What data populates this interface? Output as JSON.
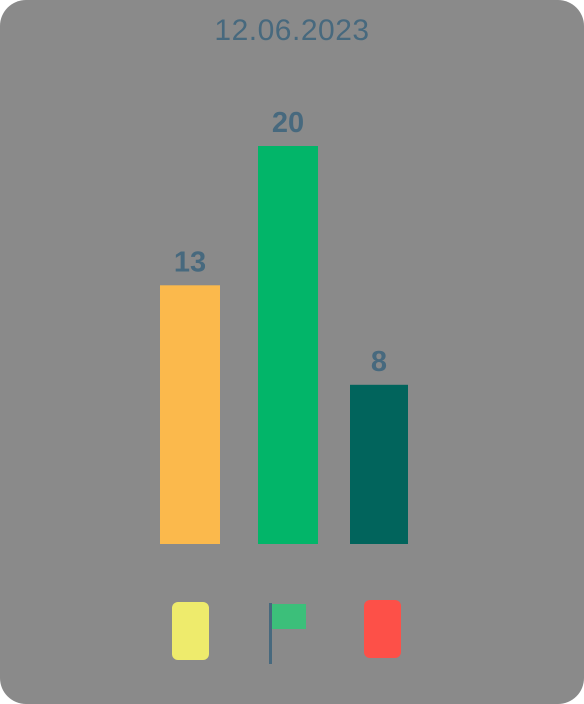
{
  "header": {
    "date": "12.06.2023"
  },
  "chart_data": {
    "type": "bar",
    "categories": [
      "",
      "",
      ""
    ],
    "values": [
      13,
      20,
      8
    ],
    "colors": [
      "#fbb94c",
      "#02b569",
      "#01645c"
    ],
    "ylim": [
      0,
      20
    ],
    "data_labels": [
      "13",
      "20",
      "8"
    ],
    "grid": false
  },
  "legend": {
    "items": [
      {
        "icon": "yellow-square-icon",
        "color": "#eeeb6c"
      },
      {
        "icon": "flag-icon",
        "color": "#3cbf7a",
        "pole_color": "#47697e"
      },
      {
        "icon": "red-square-icon",
        "color": "#fd5048"
      }
    ]
  },
  "colors": {
    "background": "#8a8a8a",
    "text": "#47697e"
  }
}
